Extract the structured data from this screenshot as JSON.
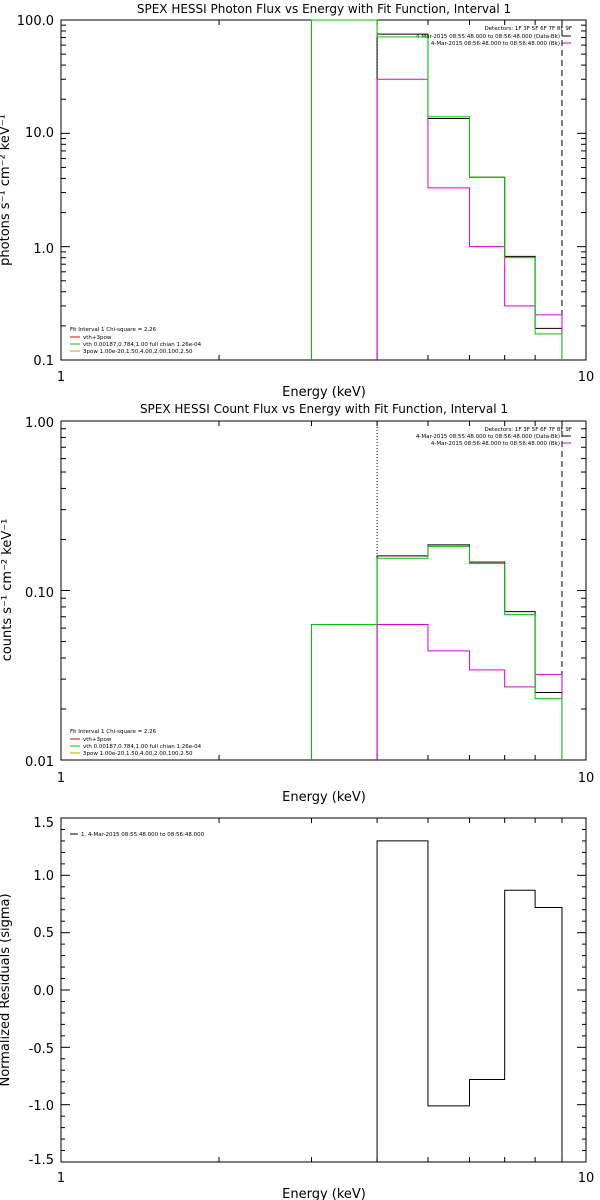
{
  "chart_data": [
    {
      "type": "line",
      "title": "SPEX HESSI Photon Flux vs Energy with Fit Function, Interval 1",
      "xlabel": "Energy (keV)",
      "ylabel": "photons s⁻¹ cm⁻² keV⁻¹",
      "xscale": "log",
      "yscale": "log",
      "xlim": [
        1,
        10
      ],
      "ylim": [
        0.1,
        100
      ],
      "x_tick_labels": [
        "1",
        "10"
      ],
      "y_tick_labels": [
        "100.0",
        "10.0",
        "1.0",
        "0.1"
      ],
      "legend_top_right": [
        "Detectors: 1F 3F 5F 6F 7F 8F 9F",
        "4-Mar-2015 08:55:48.000 to 08:56:48.000 (Data-Bk)",
        "4-Mar-2015 08:56:48.000 to 08:56:48.000 (Bk)"
      ],
      "legend_bottom_left": [
        "Fit Interval 1    Chi-square = 2.26",
        "vth+3pow",
        "vth 0.00187,0.784,1.00  full chian 1.26e-04",
        "3pow 1.00e-20,1.50,4.00,2.00,100,2.50"
      ],
      "legend_colors": [
        "#e00000",
        "#00c800",
        "#c8a000"
      ],
      "bin_edges": [
        3.0,
        4.0,
        5.0,
        6.0,
        7.0,
        8.0,
        9.0
      ],
      "series": [
        {
          "name": "4-Mar-2015 08:55:48.000 to 08:56:48.000 (Data-Bk)",
          "color": "#000000",
          "values": [
            null,
            75,
            13.5,
            4.1,
            0.82,
            0.19
          ]
        },
        {
          "name": "4-Mar-2015 08:56:48.000 to 08:56:48.000 (Bk)",
          "color": "#dd00dd",
          "values": [
            null,
            30,
            3.3,
            1.0,
            0.3,
            0.25
          ]
        },
        {
          "name": "vth+3pow",
          "color": "#00c800",
          "values": [
            100,
            71,
            14,
            4.1,
            0.8,
            0.17
          ]
        }
      ],
      "vlines": [
        {
          "x": 3.0,
          "color": "#00c800",
          "style": "solid"
        },
        {
          "x": 4.0,
          "color": "#000000",
          "style": "dotted"
        },
        {
          "x": 9.0,
          "color": "#000000",
          "style": "dashed"
        }
      ]
    },
    {
      "type": "line",
      "title": "SPEX HESSI Count Flux vs Energy with Fit Function, Interval 1",
      "xlabel": "Energy (keV)",
      "ylabel": "counts s⁻¹ cm⁻² keV⁻¹",
      "xscale": "log",
      "yscale": "log",
      "xlim": [
        1,
        10
      ],
      "ylim": [
        0.01,
        1
      ],
      "x_tick_labels": [
        "1",
        "10"
      ],
      "y_tick_labels": [
        "1.00",
        "0.10",
        "0.01"
      ],
      "legend_top_right": [
        "Detectors: 1F 3F 5F 6F 7F 8F 9F",
        "4-Mar-2015 08:55:48.000 to 08:56:48.000 (Data-Bk)",
        "4-Mar-2015 08:56:48.000 to 08:56:48.000 (Bk)"
      ],
      "legend_bottom_left": [
        "Fit Interval 1    Chi-square = 2.26",
        "vth+3pow",
        "vth 0.00187,0.784,1.00  full chian 1.26e-04",
        "3pow 1.00e-20,1.50,4.00,2.00,100,2.50"
      ],
      "legend_colors": [
        "#e00000",
        "#00c800",
        "#c8a000"
      ],
      "bin_edges": [
        3.0,
        4.0,
        5.0,
        6.0,
        7.0,
        8.0,
        9.0
      ],
      "series": [
        {
          "name": "4-Mar-2015 08:55:48.000 to 08:56:48.000 (Data-Bk)",
          "color": "#000000",
          "values": [
            null,
            0.16,
            0.186,
            0.147,
            0.075,
            0.025
          ]
        },
        {
          "name": "4-Mar-2015 08:56:48.000 to 08:56:48.000 (Bk)",
          "color": "#dd00dd",
          "values": [
            null,
            0.063,
            0.044,
            0.034,
            0.027,
            0.032
          ]
        },
        {
          "name": "vth+3pow",
          "color": "#00c800",
          "values": [
            0.063,
            0.155,
            0.182,
            0.144,
            0.072,
            0.023
          ]
        }
      ],
      "vlines": [
        {
          "x": 4.0,
          "color": "#000000",
          "style": "dotted"
        },
        {
          "x": 9.0,
          "color": "#000000",
          "style": "dashed"
        }
      ]
    },
    {
      "type": "line",
      "title": "",
      "xlabel": "Energy (keV)",
      "ylabel": "Normalized Residuals (sigma)",
      "xscale": "log",
      "yscale": "linear",
      "xlim": [
        1,
        10
      ],
      "ylim": [
        -1.5,
        1.5
      ],
      "x_tick_labels": [
        "1",
        "10"
      ],
      "y_tick_labels": [
        "1.5",
        "1.0",
        "0.5",
        "0.0",
        "-0.5",
        "-1.0",
        "-1.5"
      ],
      "legend_top_left": [
        "1.  4-Mar-2015 08:55:48.000 to 08:56:48.000"
      ],
      "bin_edges": [
        4.0,
        5.0,
        6.0,
        7.0,
        8.0,
        9.0
      ],
      "series": [
        {
          "name": "1.  4-Mar-2015 08:55:48.000 to 08:56:48.000",
          "color": "#000000",
          "values": [
            1.3,
            -1.01,
            -0.78,
            0.87,
            0.72
          ]
        }
      ]
    }
  ]
}
